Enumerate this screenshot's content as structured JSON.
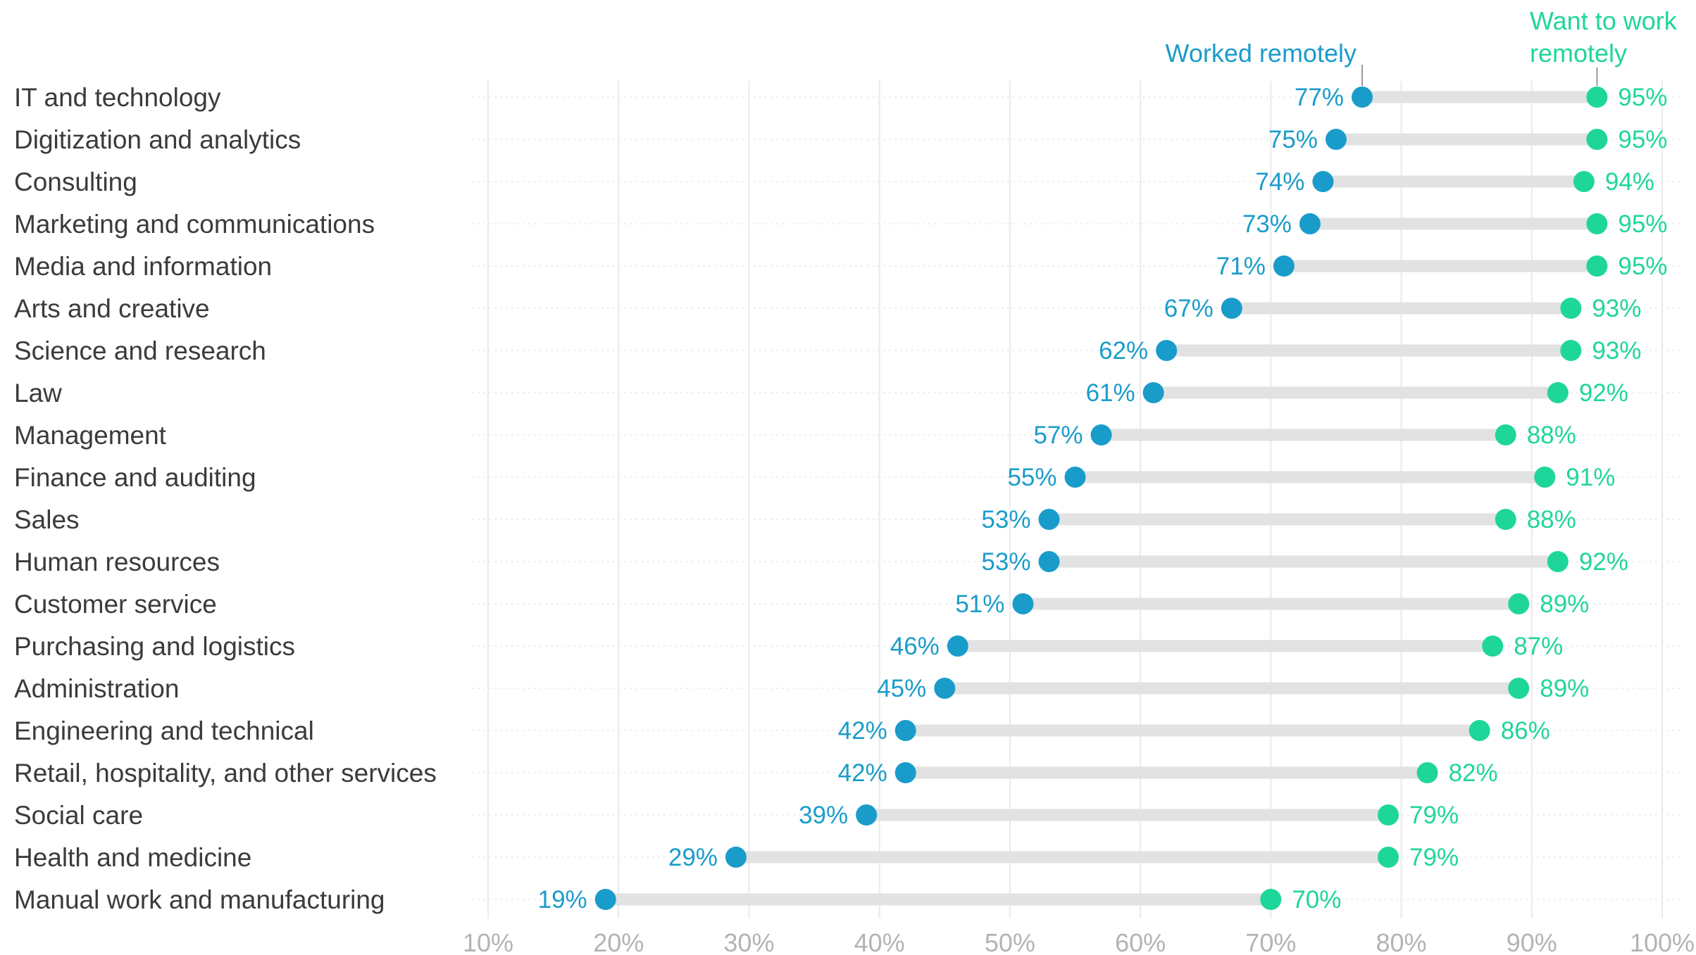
{
  "chart_data": {
    "type": "dumbbell",
    "xlim": [
      10,
      100
    ],
    "ticks": [
      "10%",
      "20%",
      "30%",
      "40%",
      "50%",
      "60%",
      "70%",
      "80%",
      "90%",
      "100%"
    ],
    "tick_values": [
      10,
      20,
      30,
      40,
      50,
      60,
      70,
      80,
      90,
      100
    ],
    "grid": true,
    "colors": {
      "worked": "#1a9ccb",
      "want": "#1fd69a",
      "connector": "#e2e2e2",
      "grid": "#e9e9e9"
    },
    "series": [
      {
        "name": "Worked remotely",
        "key": "worked"
      },
      {
        "name": "Want to work remotely",
        "key": "want"
      }
    ],
    "legend_want_lines": [
      "Want to work",
      "remotely"
    ],
    "categories": [
      "IT and technology",
      "Digitization and analytics",
      "Consulting",
      "Marketing and communications",
      "Media and information",
      "Arts and creative",
      "Science and research",
      "Law",
      "Management",
      "Finance and auditing",
      "Sales",
      "Human resources",
      "Customer service",
      "Purchasing and logistics",
      "Administration",
      "Engineering and technical",
      "Retail, hospitality, and other services",
      "Social care",
      "Health and medicine",
      "Manual work and manufacturing"
    ],
    "worked": [
      77,
      75,
      74,
      73,
      71,
      67,
      62,
      61,
      57,
      55,
      53,
      53,
      51,
      46,
      45,
      42,
      42,
      39,
      29,
      19
    ],
    "want": [
      95,
      95,
      94,
      95,
      95,
      93,
      93,
      92,
      88,
      91,
      88,
      92,
      89,
      87,
      89,
      86,
      82,
      79,
      79,
      70
    ],
    "worked_labels": [
      "77%",
      "75%",
      "74%",
      "73%",
      "71%",
      "67%",
      "62%",
      "61%",
      "57%",
      "55%",
      "53%",
      "53%",
      "51%",
      "46%",
      "45%",
      "42%",
      "42%",
      "39%",
      "29%",
      "19%"
    ],
    "want_labels": [
      "95%",
      "95%",
      "94%",
      "95%",
      "95%",
      "93%",
      "93%",
      "92%",
      "88%",
      "91%",
      "88%",
      "92%",
      "89%",
      "87%",
      "89%",
      "86%",
      "82%",
      "79%",
      "79%",
      "70%"
    ]
  }
}
